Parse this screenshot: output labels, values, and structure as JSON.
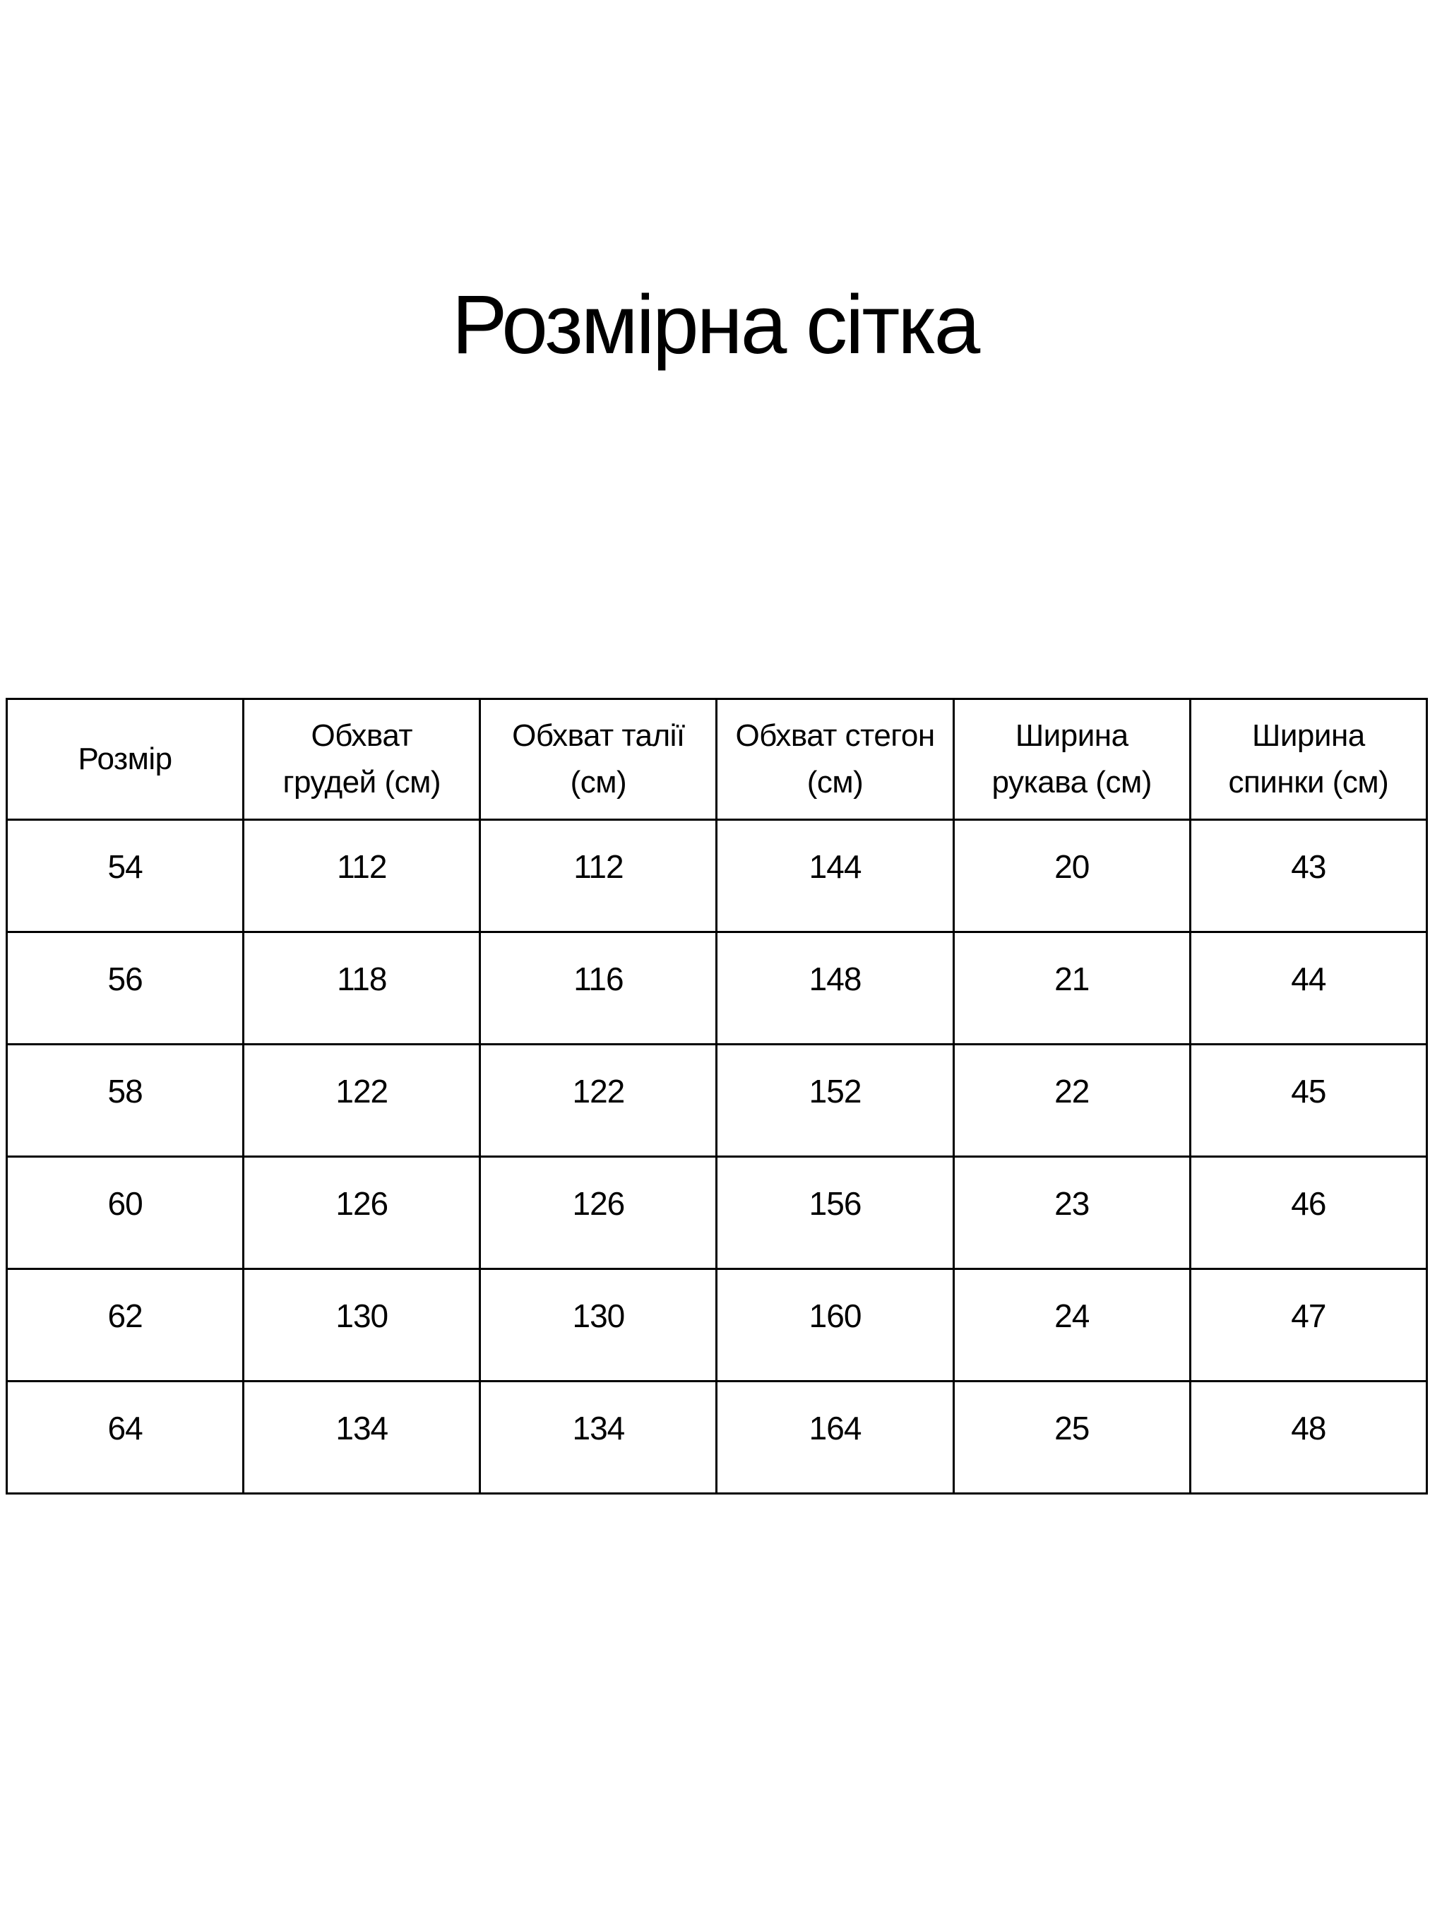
{
  "page": {
    "title": "Розмірна сітка"
  },
  "table": {
    "columns": [
      "Розмір",
      "Обхват\nгрудей (см)",
      "Обхват талії\n(см)",
      "Обхват стегон\n(см)",
      "Ширина\nрукава (см)",
      "Ширина\nспинки (см)"
    ],
    "rows": [
      [
        "54",
        "112",
        "112",
        "144",
        "20",
        "43"
      ],
      [
        "56",
        "118",
        "116",
        "148",
        "21",
        "44"
      ],
      [
        "58",
        "122",
        "122",
        "152",
        "22",
        "45"
      ],
      [
        "60",
        "126",
        "126",
        "156",
        "23",
        "46"
      ],
      [
        "62",
        "130",
        "130",
        "160",
        "24",
        "47"
      ],
      [
        "64",
        "134",
        "134",
        "164",
        "25",
        "48"
      ]
    ]
  },
  "colors": {
    "background": "#ffffff",
    "text": "#000000",
    "border": "#000000"
  }
}
